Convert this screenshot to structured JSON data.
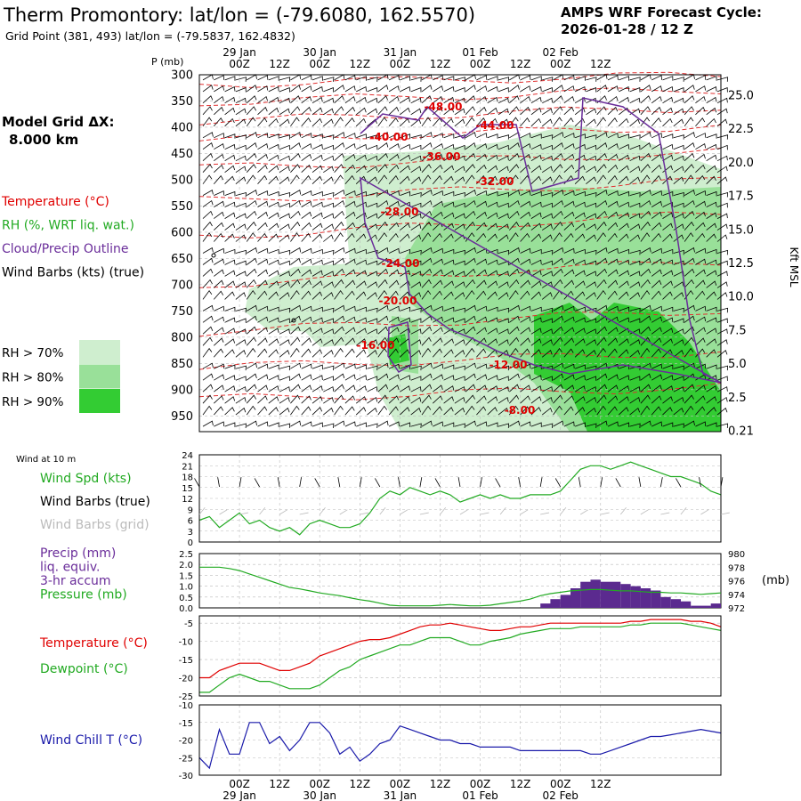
{
  "header": {
    "title": "Therm Promontory:  lat/lon = (-79.6080, 162.5570)",
    "subtitle": "Grid Point (381, 493) lat/lon = (-79.5837, 162.4832)",
    "cycle_line1": "AMPS WRF Forecast Cycle:",
    "cycle_line2": "2026-01-28 / 12  Z"
  },
  "time_axis": {
    "labels": [
      "00Z",
      "12Z",
      "00Z",
      "12Z",
      "00Z",
      "12Z",
      "00Z",
      "12Z",
      "00Z",
      "12Z"
    ],
    "dates": [
      "29 Jan",
      "30 Jan",
      "31 Jan",
      "01 Feb",
      "02 Feb"
    ]
  },
  "left_panel": {
    "model_grid_line1": "Model Grid ΔX:",
    "model_grid_line2": "8.000 km",
    "legend": [
      {
        "label": "Temperature (°C)",
        "color": "#e00000"
      },
      {
        "label": "RH (%, WRT liq. wat.)",
        "color": "#22aa22"
      },
      {
        "label": "Cloud/Precip Outline",
        "color": "#6a2d9a"
      },
      {
        "label": "Wind Barbs (kts) (true)",
        "color": "#000000"
      }
    ],
    "rh_key": [
      {
        "label": "RH > 70%",
        "color": "#cfeecf"
      },
      {
        "label": "RH > 80%",
        "color": "#99e099"
      },
      {
        "label": "RH > 90%",
        "color": "#33cc33"
      }
    ],
    "wind10_label": "Wind at 10 m",
    "p1_labels": [
      {
        "label": "Wind Spd (kts)",
        "color": "#22aa22"
      },
      {
        "label": "Wind Barbs (true)",
        "color": "#000000"
      },
      {
        "label": "Wind Barbs (grid)",
        "color": "#bbbbbb"
      }
    ],
    "p2_labels": [
      {
        "label": "Precip (mm)",
        "color": "#6a2d9a"
      },
      {
        "label": "liq. equiv.",
        "color": "#6a2d9a"
      },
      {
        "label": "3-hr accum",
        "color": "#6a2d9a"
      },
      {
        "label": "Pressure (mb)",
        "color": "#22aa22"
      }
    ],
    "p3_labels": [
      {
        "label": "Temperature (°C)",
        "color": "#e00000"
      },
      {
        "label": "Dewpoint (°C)",
        "color": "#22aa22"
      }
    ],
    "p4_labels": [
      {
        "label": "Wind Chill T (°C)",
        "color": "#1a1aaa"
      }
    ]
  },
  "chart_data": [
    {
      "type": "heatmap",
      "y_title": "P (mb)",
      "y_ticks": [
        "300",
        "350",
        "400",
        "450",
        "500",
        "550",
        "600",
        "650",
        "700",
        "750",
        "800",
        "850",
        "900",
        "950"
      ],
      "ylim": [
        300,
        980
      ],
      "right_ticks": [
        "25.0",
        "22.5",
        "20.0",
        "17.5",
        "15.0",
        "12.5",
        "10.0",
        "7.5",
        "5.0",
        "2.5",
        "0.21"
      ],
      "right_unit": "Kft MSL",
      "temperature_labels": [
        "-48.00",
        "-44.00",
        "-40.00",
        "-36.00",
        "-32.00",
        "-28.00",
        "-24.00",
        "-20.00",
        "-16.00",
        "-12.00",
        "-8.00"
      ],
      "isotherm_pressure_start": [
        318,
        352,
        388,
        425,
        478,
        540,
        608,
        700,
        790,
        858,
        918
      ],
      "isotherm_pressure_end": [
        300,
        328,
        362,
        398,
        448,
        502,
        565,
        655,
        748,
        828,
        895
      ]
    },
    {
      "type": "line",
      "ylim": [
        0,
        24
      ],
      "y_ticks": [
        "24",
        "21",
        "18",
        "15",
        "12",
        "9",
        "6",
        "3",
        "0"
      ],
      "series": [
        {
          "name": "Wind Spd (kts)",
          "color": "#22aa22",
          "x": [
            -12,
            -9,
            -6,
            -3,
            0,
            3,
            6,
            9,
            12,
            15,
            18,
            21,
            24,
            27,
            30,
            33,
            36,
            39,
            42,
            45,
            48,
            51,
            54,
            57,
            60,
            63,
            66,
            69,
            72,
            75,
            78,
            81,
            84,
            87,
            90,
            93,
            96,
            99,
            102,
            105,
            108,
            111,
            114,
            117,
            120,
            123,
            126,
            129,
            132,
            135,
            138,
            141,
            144
          ],
          "values": [
            6,
            7,
            4,
            6,
            8,
            5,
            6,
            4,
            3,
            4,
            2,
            5,
            6,
            5,
            4,
            4,
            5,
            8,
            12,
            14,
            13,
            15,
            14,
            13,
            14,
            13,
            11,
            12,
            13,
            12,
            13,
            12,
            12,
            13,
            13,
            13,
            14,
            17,
            20,
            21,
            21,
            20,
            21,
            22,
            21,
            20,
            19,
            18,
            18,
            17,
            16,
            14,
            13
          ]
        }
      ]
    },
    {
      "type": "bar",
      "ylim": [
        0,
        2.5
      ],
      "y_ticks": [
        "2.5",
        "2.0",
        "1.5",
        "1.0",
        "0.5",
        "0.0"
      ],
      "right_ticks": [
        "980",
        "978",
        "976",
        "974",
        "972"
      ],
      "right_ylim": [
        972,
        980
      ],
      "right_unit": "(mb)",
      "precip": {
        "name": "Precip (mm)",
        "color": "#5b2a8f",
        "x": [
          93,
          96,
          99,
          102,
          105,
          108,
          111,
          114,
          117,
          120,
          123,
          126,
          129,
          132,
          135,
          138,
          141,
          144
        ],
        "values": [
          0.2,
          0.4,
          0.6,
          0.9,
          1.2,
          1.3,
          1.2,
          1.2,
          1.1,
          1.0,
          0.9,
          0.8,
          0.5,
          0.4,
          0.3,
          0.1,
          0.1,
          0.2
        ]
      },
      "series": [
        {
          "name": "Pressure (mb)",
          "color": "#22aa22",
          "x": [
            -12,
            -9,
            -6,
            -3,
            0,
            3,
            6,
            9,
            12,
            15,
            18,
            21,
            24,
            27,
            30,
            33,
            36,
            39,
            42,
            45,
            48,
            51,
            54,
            57,
            60,
            63,
            66,
            69,
            72,
            75,
            78,
            81,
            84,
            87,
            90,
            93,
            96,
            99,
            102,
            105,
            108,
            111,
            114,
            117,
            120,
            123,
            126,
            129,
            132,
            135,
            138,
            141,
            144
          ],
          "values": [
            978.0,
            978.0,
            978.0,
            977.8,
            977.5,
            977.0,
            976.5,
            976.0,
            975.5,
            975.0,
            974.8,
            974.5,
            974.2,
            974.0,
            973.8,
            973.5,
            973.2,
            973.0,
            972.7,
            972.4,
            972.3,
            972.3,
            972.3,
            972.3,
            972.4,
            972.5,
            972.4,
            972.3,
            972.3,
            972.4,
            972.6,
            972.8,
            973.0,
            973.3,
            973.8,
            974.1,
            974.3,
            974.5,
            974.6,
            974.7,
            974.7,
            974.6,
            974.5,
            974.5,
            974.4,
            974.3,
            974.3,
            974.2,
            974.2,
            974.1,
            974.0,
            974.1,
            974.2
          ]
        }
      ]
    },
    {
      "type": "line",
      "ylim": [
        -25,
        -3
      ],
      "y_ticks": [
        "-5",
        "-10",
        "-15",
        "-20",
        "-25"
      ],
      "series": [
        {
          "name": "Temperature (°C)",
          "color": "#e00000",
          "x": [
            -12,
            -9,
            -6,
            -3,
            0,
            3,
            6,
            9,
            12,
            15,
            18,
            21,
            24,
            27,
            30,
            33,
            36,
            39,
            42,
            45,
            48,
            51,
            54,
            57,
            60,
            63,
            66,
            69,
            72,
            75,
            78,
            81,
            84,
            87,
            90,
            93,
            96,
            99,
            102,
            105,
            108,
            111,
            114,
            117,
            120,
            123,
            126,
            129,
            132,
            135,
            138,
            141,
            144
          ],
          "values": [
            -20,
            -20,
            -18,
            -17,
            -16,
            -16,
            -16,
            -17,
            -18,
            -18,
            -17,
            -16,
            -14,
            -13,
            -12,
            -11,
            -10,
            -9.5,
            -9.5,
            -9,
            -8,
            -7,
            -6,
            -5.5,
            -5.5,
            -5,
            -5.5,
            -6,
            -6.5,
            -7,
            -7,
            -6.5,
            -6,
            -6,
            -5.5,
            -5,
            -5,
            -5,
            -5,
            -5,
            -5,
            -5,
            -5,
            -4.5,
            -4.5,
            -4,
            -4,
            -4,
            -4,
            -4.5,
            -4.5,
            -5,
            -6
          ]
        },
        {
          "name": "Dewpoint (°C)",
          "color": "#22aa22",
          "x": [
            -12,
            -9,
            -6,
            -3,
            0,
            3,
            6,
            9,
            12,
            15,
            18,
            21,
            24,
            27,
            30,
            33,
            36,
            39,
            42,
            45,
            48,
            51,
            54,
            57,
            60,
            63,
            66,
            69,
            72,
            75,
            78,
            81,
            84,
            87,
            90,
            93,
            96,
            99,
            102,
            105,
            108,
            111,
            114,
            117,
            120,
            123,
            126,
            129,
            132,
            135,
            138,
            141,
            144
          ],
          "values": [
            -24,
            -24,
            -22,
            -20,
            -19,
            -20,
            -21,
            -21,
            -22,
            -23,
            -23,
            -23,
            -22,
            -20,
            -18,
            -17,
            -15,
            -14,
            -13,
            -12,
            -11,
            -11,
            -10,
            -9,
            -9,
            -9,
            -10,
            -11,
            -11,
            -10,
            -9.5,
            -9,
            -8,
            -7.5,
            -7,
            -6.5,
            -6.5,
            -6.5,
            -6,
            -6,
            -6,
            -6,
            -6,
            -5.5,
            -5.5,
            -5,
            -5,
            -5,
            -5,
            -5.5,
            -6,
            -6.5,
            -7
          ]
        }
      ]
    },
    {
      "type": "line",
      "ylim": [
        -30,
        -10
      ],
      "y_ticks": [
        "-10",
        "-15",
        "-20",
        "-25",
        "-30"
      ],
      "series": [
        {
          "name": "Wind Chill T (°C)",
          "color": "#1a1aaa",
          "x": [
            -12,
            -9,
            -6,
            -3,
            0,
            3,
            6,
            9,
            12,
            15,
            18,
            21,
            24,
            27,
            30,
            33,
            36,
            39,
            42,
            45,
            48,
            51,
            54,
            57,
            60,
            63,
            66,
            69,
            72,
            75,
            78,
            81,
            84,
            87,
            90,
            93,
            96,
            99,
            102,
            105,
            108,
            111,
            114,
            117,
            120,
            123,
            126,
            129,
            132,
            135,
            138,
            141,
            144
          ],
          "values": [
            -25,
            -28,
            -17,
            -24,
            -24,
            -15,
            -15,
            -21,
            -19,
            -23,
            -20,
            -15,
            -15,
            -18,
            -24,
            -22,
            -26,
            -24,
            -21,
            -20,
            -16,
            -17,
            -18,
            -19,
            -20,
            -20,
            -21,
            -21,
            -22,
            -22,
            -22,
            -22,
            -23,
            -23,
            -23,
            -23,
            -23,
            -23,
            -23,
            -24,
            -24,
            -23,
            -22,
            -21,
            -20,
            -19,
            -19,
            -18.5,
            -18,
            -17.5,
            -17,
            -17.5,
            -18
          ]
        }
      ]
    }
  ]
}
